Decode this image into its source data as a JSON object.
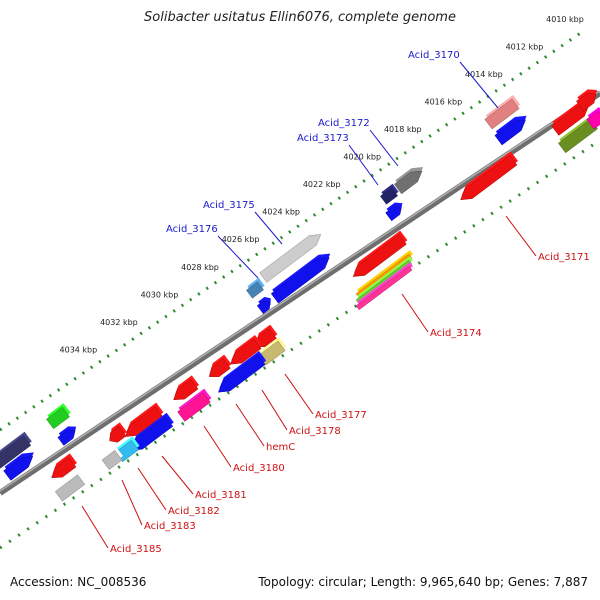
{
  "title": "Solibacter usitatus Ellin6076, complete genome",
  "footer": {
    "accession": "Accession: NC_008536",
    "summary": "Topology: circular; Length: 9,965,640 bp; Genes: 7,887"
  },
  "colors": {
    "backbone": "#888888",
    "tick_outer": "#2e8b2e",
    "label_blue": "#1a1acc",
    "label_red": "#cc1111"
  },
  "ticks": [
    {
      "label": "4010 kbp",
      "t": 0.0
    },
    {
      "label": "4012 kbp",
      "t": 0.074
    },
    {
      "label": "4014 kbp",
      "t": 0.148
    },
    {
      "label": "4016 kbp",
      "t": 0.222
    },
    {
      "label": "4018 kbp",
      "t": 0.296
    },
    {
      "label": "4020 kbp",
      "t": 0.37
    },
    {
      "label": "4022 kbp",
      "t": 0.444
    },
    {
      "label": "4024 kbp",
      "t": 0.518
    },
    {
      "label": "4026 kbp",
      "t": 0.592
    },
    {
      "label": "4028 kbp",
      "t": 0.666
    },
    {
      "label": "4030 kbp",
      "t": 0.74
    },
    {
      "label": "4032 kbp",
      "t": 0.814
    },
    {
      "label": "4034 kbp",
      "t": 0.888
    }
  ],
  "gene_labels": [
    {
      "label": "Acid_3170",
      "strand": "plus"
    },
    {
      "label": "Acid_3172",
      "strand": "plus"
    },
    {
      "label": "Acid_3173",
      "strand": "plus"
    },
    {
      "label": "Acid_3175",
      "strand": "plus"
    },
    {
      "label": "Acid_3176",
      "strand": "plus"
    },
    {
      "label": "Acid_3171",
      "strand": "minus"
    },
    {
      "label": "Acid_3174",
      "strand": "minus"
    },
    {
      "label": "Acid_3177",
      "strand": "minus"
    },
    {
      "label": "Acid_3178",
      "strand": "minus"
    },
    {
      "label": "hemC",
      "strand": "minus"
    },
    {
      "label": "Acid_3180",
      "strand": "minus"
    },
    {
      "label": "Acid_3181",
      "strand": "minus"
    },
    {
      "label": "Acid_3182",
      "strand": "minus"
    },
    {
      "label": "Acid_3183",
      "strand": "minus"
    },
    {
      "label": "Acid_3185",
      "strand": "minus"
    }
  ]
}
